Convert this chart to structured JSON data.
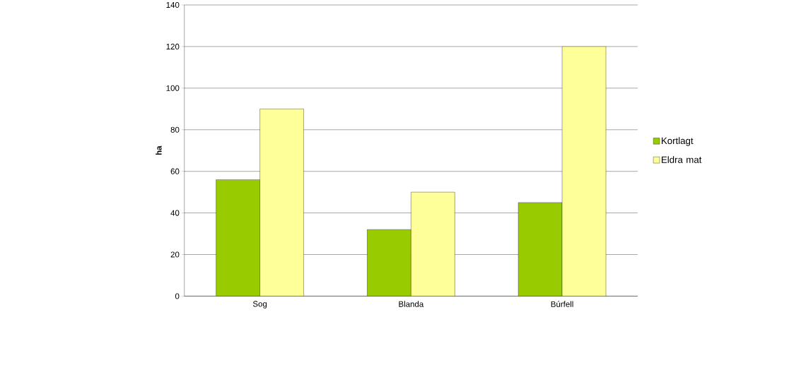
{
  "chart_data": {
    "type": "bar",
    "ylabel": "ha",
    "categories": [
      "Sog",
      "Blanda",
      "Búrfell"
    ],
    "series": [
      {
        "name": "Kortlagt",
        "color": "#99cc00",
        "values": [
          56,
          32,
          45
        ]
      },
      {
        "name": "Eldra mat",
        "color": "#ffff99",
        "values": [
          90,
          50,
          120
        ]
      }
    ],
    "ylim": [
      0,
      140
    ],
    "yticks": [
      0,
      20,
      40,
      60,
      80,
      100,
      120,
      140
    ],
    "grid": "y",
    "legend": "right"
  }
}
